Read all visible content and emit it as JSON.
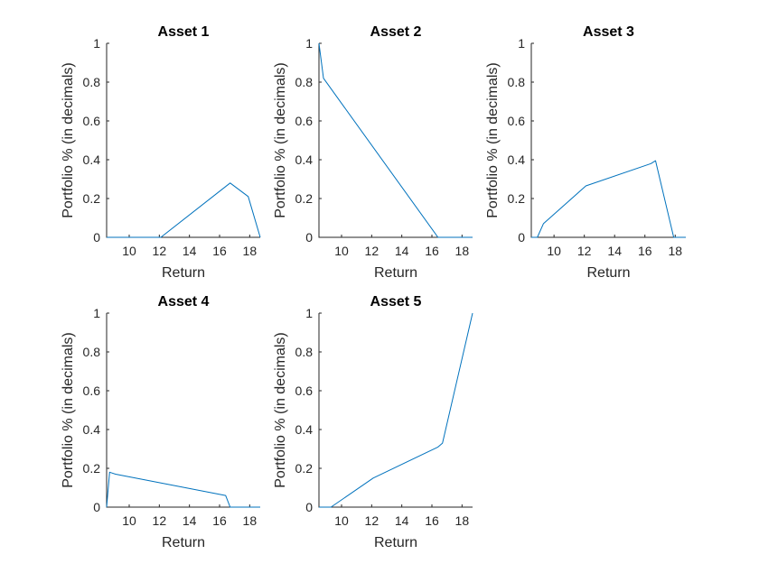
{
  "chart_data": [
    {
      "type": "line",
      "title": "Asset 1",
      "xlabel": "Return",
      "ylabel": "Portfolio % (in decimals)",
      "xlim": [
        8.5,
        18.7
      ],
      "ylim": [
        0,
        1
      ],
      "xticks": [
        10,
        12,
        14,
        16,
        18
      ],
      "yticks": [
        0,
        0.2,
        0.4,
        0.6,
        0.8,
        1
      ],
      "series": [
        {
          "color": "#0072BD",
          "x": [
            8.5,
            9.3,
            12.1,
            16.7,
            17.9,
            18.7
          ],
          "y": [
            0,
            0,
            0,
            0.28,
            0.21,
            0
          ]
        }
      ]
    },
    {
      "type": "line",
      "title": "Asset 2",
      "xlabel": "Return",
      "ylabel": "Portfolio % (in decimals)",
      "xlim": [
        8.5,
        18.7
      ],
      "ylim": [
        0,
        1
      ],
      "xticks": [
        10,
        12,
        14,
        16,
        18
      ],
      "yticks": [
        0,
        0.2,
        0.4,
        0.6,
        0.8,
        1
      ],
      "series": [
        {
          "color": "#0072BD",
          "x": [
            8.5,
            8.8,
            16.4,
            18.7
          ],
          "y": [
            1,
            0.82,
            0,
            0
          ]
        }
      ]
    },
    {
      "type": "line",
      "title": "Asset 3",
      "xlabel": "Return",
      "ylabel": "Portfolio % (in decimals)",
      "xlim": [
        8.5,
        18.7
      ],
      "ylim": [
        0,
        1
      ],
      "xticks": [
        10,
        12,
        14,
        16,
        18
      ],
      "yticks": [
        0,
        0.2,
        0.4,
        0.6,
        0.8,
        1
      ],
      "series": [
        {
          "color": "#0072BD",
          "x": [
            8.5,
            8.9,
            9.3,
            12.1,
            16.4,
            16.7,
            17.9,
            18.7
          ],
          "y": [
            0,
            0,
            0.07,
            0.265,
            0.38,
            0.395,
            0,
            0
          ]
        }
      ]
    },
    {
      "type": "line",
      "title": "Asset 4",
      "xlabel": "Return",
      "ylabel": "Portfolio % (in decimals)",
      "xlim": [
        8.5,
        18.7
      ],
      "ylim": [
        0,
        1
      ],
      "xticks": [
        10,
        12,
        14,
        16,
        18
      ],
      "yticks": [
        0,
        0.2,
        0.4,
        0.6,
        0.8,
        1
      ],
      "series": [
        {
          "color": "#0072BD",
          "x": [
            8.5,
            8.7,
            9.1,
            16.4,
            16.7,
            18.7
          ],
          "y": [
            0,
            0.18,
            0.17,
            0.06,
            0,
            0
          ]
        }
      ]
    },
    {
      "type": "line",
      "title": "Asset 5",
      "xlabel": "Return",
      "ylabel": "Portfolio % (in decimals)",
      "xlim": [
        8.5,
        18.7
      ],
      "ylim": [
        0,
        1
      ],
      "xticks": [
        10,
        12,
        14,
        16,
        18
      ],
      "yticks": [
        0,
        0.2,
        0.4,
        0.6,
        0.8,
        1
      ],
      "series": [
        {
          "color": "#0072BD",
          "x": [
            8.5,
            9.3,
            12.1,
            16.4,
            16.7,
            18.7
          ],
          "y": [
            0,
            0,
            0.15,
            0.31,
            0.33,
            1
          ]
        }
      ]
    }
  ]
}
